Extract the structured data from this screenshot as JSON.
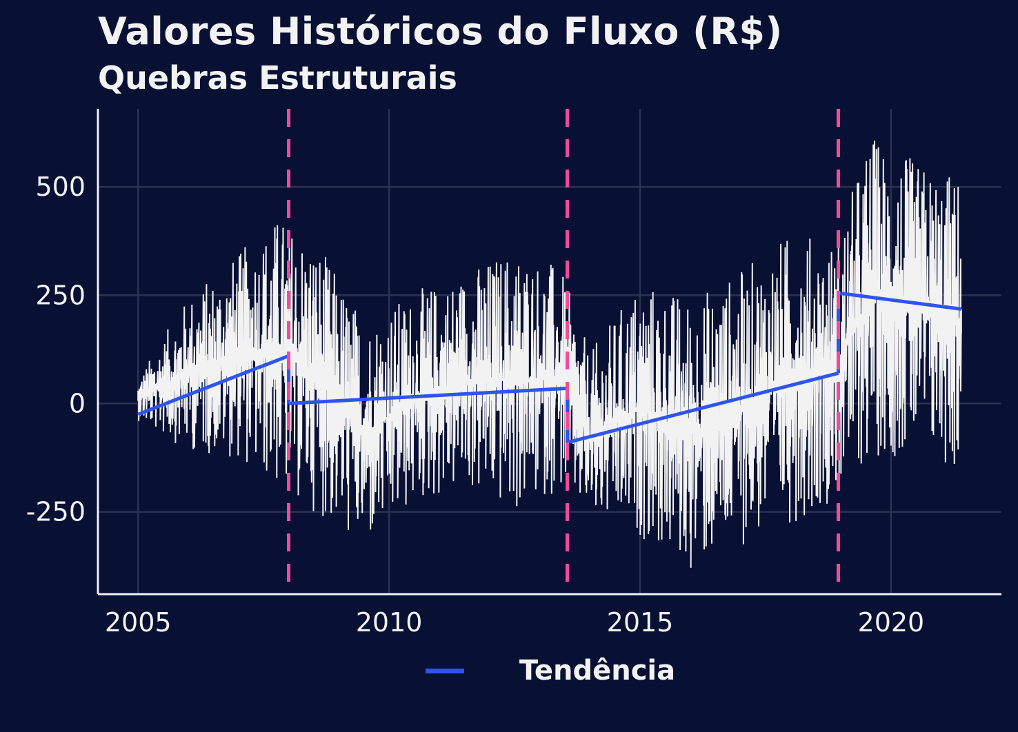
{
  "title": "Valores Históricos do Fluxo (R$)",
  "subtitle": "Quebras Estruturais",
  "colors": {
    "background": "#081034",
    "grid": "#2b3350",
    "axis": "#f2f2f2",
    "series": "#f2f2f2",
    "trend": "#2e54f0",
    "breaks": "#f04c9c"
  },
  "chart_data": {
    "type": "line",
    "title": "Valores Históricos do Fluxo (R$)",
    "subtitle": "Quebras Estruturais",
    "xlabel": "",
    "ylabel": "",
    "xlim": [
      2004.2,
      2022.2
    ],
    "ylim": [
      -440,
      680
    ],
    "x_ticks": [
      2005,
      2010,
      2015,
      2020
    ],
    "y_ticks": [
      -250,
      0,
      250,
      500
    ],
    "y_tick_labels": [
      "-250",
      "0",
      "250",
      "500"
    ],
    "grid": true,
    "legend": {
      "position": "bottom",
      "entries": [
        "Tendência"
      ]
    },
    "structural_breaks": [
      2008.0,
      2013.55,
      2018.95
    ],
    "trend_segments": [
      {
        "x": [
          2005.0,
          2008.0
        ],
        "y": [
          -25,
          110
        ]
      },
      {
        "x": [
          2008.0,
          2013.55
        ],
        "y": [
          0,
          35
        ]
      },
      {
        "x": [
          2013.55,
          2018.95
        ],
        "y": [
          -90,
          70
        ]
      },
      {
        "x": [
          2018.95,
          2021.4
        ],
        "y": [
          255,
          218
        ]
      }
    ],
    "series": [
      {
        "name": "Fluxo",
        "style": "high-frequency daily values",
        "envelope": [
          {
            "x": 2005.0,
            "low": -40,
            "high": 60
          },
          {
            "x": 2006.0,
            "low": -110,
            "high": 250
          },
          {
            "x": 2007.0,
            "low": -130,
            "high": 350
          },
          {
            "x": 2007.8,
            "low": -200,
            "high": 440
          },
          {
            "x": 2008.5,
            "low": -250,
            "high": 390
          },
          {
            "x": 2009.5,
            "low": -340,
            "high": 200
          },
          {
            "x": 2010.5,
            "low": -240,
            "high": 260
          },
          {
            "x": 2011.5,
            "low": -200,
            "high": 310
          },
          {
            "x": 2012.5,
            "low": -260,
            "high": 370
          },
          {
            "x": 2013.4,
            "low": -200,
            "high": 320
          },
          {
            "x": 2014.0,
            "low": -270,
            "high": 120
          },
          {
            "x": 2015.0,
            "low": -310,
            "high": 290
          },
          {
            "x": 2016.0,
            "low": -390,
            "high": 250
          },
          {
            "x": 2017.0,
            "low": -330,
            "high": 310
          },
          {
            "x": 2018.0,
            "low": -280,
            "high": 400
          },
          {
            "x": 2018.9,
            "low": -220,
            "high": 380
          },
          {
            "x": 2019.6,
            "low": -130,
            "high": 630
          },
          {
            "x": 2020.5,
            "low": -120,
            "high": 560
          },
          {
            "x": 2021.4,
            "low": -170,
            "high": 530
          }
        ]
      }
    ]
  }
}
